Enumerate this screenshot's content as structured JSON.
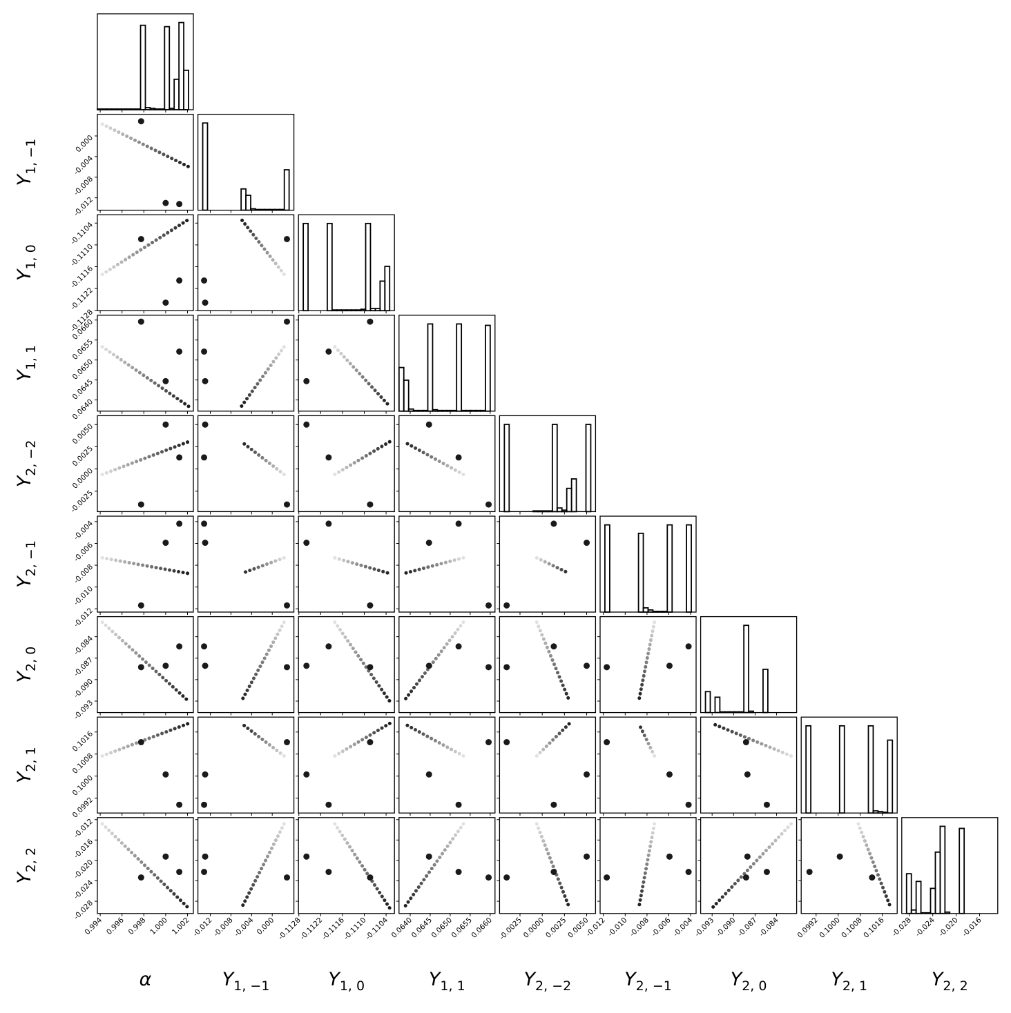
{
  "chart_data": {
    "type": "corner",
    "colors": {
      "frame": "#000000",
      "hist": "#000000",
      "mode": "#1a1a1a",
      "track": [
        "#e2e2e2",
        "#1a1a1a"
      ]
    },
    "parameters": [
      {
        "symbol": "α",
        "lim": [
          0.99374,
          1.00254
        ],
        "ticks": [
          0.994,
          0.996,
          0.998,
          {
            "value": 1,
            "label": "1.000"
          },
          1.002
        ],
        "bins": [
          0.99374,
          0.99418,
          0.99462,
          0.99506,
          0.9955,
          0.99594,
          0.99638,
          0.99682,
          0.99726,
          0.9977,
          0.99814,
          0.99858,
          0.99902,
          0.99946,
          0.9999,
          1.00034,
          1.00078,
          1.00122,
          1.00166,
          1.0021,
          1.00254
        ],
        "counts": [
          1,
          1,
          1,
          1,
          1,
          1,
          1,
          1,
          1,
          122,
          3,
          2,
          1,
          1,
          120,
          2,
          44,
          126,
          57,
          0
        ]
      },
      {
        "symbol": "Y",
        "sub": "1, −1",
        "lim": [
          -0.0144,
          0.0042
        ],
        "ticks": [
          -0.012,
          -0.008,
          -0.004,
          {
            "value": 0,
            "label": "0.000"
          }
        ],
        "bins": [
          -0.0144,
          -0.01347,
          -0.01254,
          -0.01161,
          -0.01068,
          -0.00975,
          -0.00882,
          -0.00789,
          -0.00696,
          -0.00603,
          -0.0051,
          -0.00417,
          -0.00324,
          -0.00231,
          -0.00138,
          -0.00045,
          0.00048,
          0.00141,
          0.00234,
          0.00327,
          0.0042
        ],
        "counts": [
          0,
          123,
          0,
          0,
          0,
          0,
          0,
          0,
          0,
          30,
          21,
          2,
          1,
          1,
          1,
          1,
          1,
          1,
          57,
          0
        ]
      },
      {
        "symbol": "Y",
        "sub": "1, 0",
        "lim": [
          -0.11281,
          -0.11017
        ],
        "ticks": [
          -0.1128,
          -0.1122,
          -0.1116,
          {
            "value": -0.111,
            "label": "-0.1110"
          },
          -0.1104
        ],
        "bins": [
          -0.11281,
          -0.112678,
          -0.112546,
          -0.112414,
          -0.112282,
          -0.11215,
          -0.112018,
          -0.111886,
          -0.111754,
          -0.111622,
          -0.11149,
          -0.111358,
          -0.111226,
          -0.111094,
          -0.110962,
          -0.11083,
          -0.110698,
          -0.110566,
          -0.110434,
          -0.110302,
          -0.11017
        ],
        "counts": [
          0,
          124,
          0,
          0,
          0,
          0,
          124,
          1,
          1,
          1,
          1,
          1,
          1,
          2,
          124,
          3,
          3,
          42,
          63,
          0
        ]
      },
      {
        "symbol": "Y",
        "sub": "1, 1",
        "lim": [
          0.06372,
          0.06612
        ],
        "ticks": [
          {
            "value": 0.064,
            "label": "0.0640"
          },
          0.0645,
          {
            "value": 0.065,
            "label": "0.0650"
          },
          0.0655,
          {
            "value": 0.066,
            "label": "0.0660"
          }
        ],
        "bins": [
          0.06372,
          0.06384,
          0.06396,
          0.06408,
          0.0642,
          0.06432,
          0.06444,
          0.06456,
          0.06468,
          0.0648,
          0.06492,
          0.06504,
          0.06516,
          0.06528,
          0.0654,
          0.06552,
          0.06564,
          0.06576,
          0.06588,
          0.066,
          0.06612
        ],
        "counts": [
          62,
          44,
          3,
          1,
          1,
          1,
          124,
          2,
          1,
          1,
          1,
          1,
          124,
          1,
          1,
          1,
          1,
          1,
          122,
          0
        ]
      },
      {
        "symbol": "Y",
        "sub": "2, −2",
        "lim": [
          -0.0048,
          0.006
        ],
        "ticks": [
          -0.0025,
          {
            "value": 0,
            "label": "0.0000"
          },
          0.0025,
          {
            "value": 0.005,
            "label": "0.0050"
          }
        ],
        "bins": [
          -0.0048,
          -0.00426,
          -0.00372,
          -0.00318,
          -0.00264,
          -0.0021,
          -0.00156,
          -0.00102,
          -0.00048,
          6e-05,
          0.0006,
          0.00114,
          0.00168,
          0.00222,
          0.00276,
          0.0033,
          0.00384,
          0.00438,
          0.00492,
          0.00546,
          0.006
        ],
        "counts": [
          0,
          120,
          0,
          0,
          0,
          0,
          0,
          1,
          1,
          1,
          1,
          120,
          5,
          2,
          32,
          45,
          0,
          0,
          120,
          0
        ]
      },
      {
        "symbol": "Y",
        "sub": "2, −1",
        "lim": [
          -0.0123,
          -0.0035
        ],
        "ticks": [
          -0.012,
          {
            "value": -0.01,
            "label": "-0.010"
          },
          -0.008,
          -0.006,
          -0.004
        ],
        "bins": [
          -0.0123,
          -0.01186,
          -0.01142,
          -0.01098,
          -0.01054,
          -0.0101,
          -0.00966,
          -0.00922,
          -0.00878,
          -0.00834,
          -0.0079,
          -0.00746,
          -0.00702,
          -0.00658,
          -0.00614,
          -0.0057,
          -0.00526,
          -0.00482,
          -0.00438,
          -0.00394,
          -0.0035
        ],
        "counts": [
          0,
          124,
          0,
          0,
          0,
          0,
          0,
          0,
          112,
          6,
          3,
          1,
          1,
          1,
          124,
          0,
          0,
          0,
          124,
          0
        ]
      },
      {
        "symbol": "Y",
        "sub": "2, 0",
        "lim": [
          -0.0946,
          -0.0812
        ],
        "ticks": [
          -0.093,
          {
            "value": -0.09,
            "label": "-0.090"
          },
          -0.087,
          -0.084
        ],
        "bins": [
          -0.0946,
          -0.09393,
          -0.09326,
          -0.09259,
          -0.09192,
          -0.09125,
          -0.09058,
          -0.08991,
          -0.08924,
          -0.08857,
          -0.0879,
          -0.08723,
          -0.08656,
          -0.08589,
          -0.08522,
          -0.08455,
          -0.08388,
          -0.08321,
          -0.08254,
          -0.08187,
          -0.0812
        ],
        "counts": [
          0,
          30,
          0,
          22,
          1,
          1,
          1,
          1,
          1,
          125,
          2,
          0,
          0,
          62,
          0,
          0,
          0,
          0,
          0,
          0
        ]
      },
      {
        "symbol": "Y",
        "sub": "2, 1",
        "lim": [
          0.09866,
          0.10214
        ],
        "ticks": [
          0.0992,
          {
            "value": 0.1,
            "label": "0.1000"
          },
          0.1008,
          0.1016
        ],
        "bins": [
          0.09866,
          0.098834,
          0.099008,
          0.099182,
          0.099356,
          0.09953,
          0.099704,
          0.099878,
          0.100052,
          0.100226,
          0.1004,
          0.100574,
          0.100748,
          0.100922,
          0.101096,
          0.10127,
          0.101444,
          0.101618,
          0.101792,
          0.101966,
          0.10214
        ],
        "counts": [
          0,
          122,
          0,
          0,
          0,
          0,
          0,
          0,
          122,
          0,
          0,
          0,
          0,
          0,
          122,
          3,
          2,
          1,
          102,
          0
        ]
      },
      {
        "symbol": "Y",
        "sub": "2, 2",
        "lim": [
          -0.0304,
          -0.0116
        ],
        "ticks": [
          -0.028,
          -0.024,
          {
            "value": -0.02,
            "label": "-0.020"
          },
          -0.016,
          -0.012
        ],
        "bins": [
          -0.0293,
          -0.02848,
          -0.02766,
          -0.02684,
          -0.02602,
          -0.0252,
          -0.02438,
          -0.02356,
          -0.02274,
          -0.02192,
          -0.0211,
          -0.02028,
          -0.01946,
          -0.01864,
          -0.01782,
          -0.017,
          -0.01618,
          -0.01536,
          -0.01454,
          -0.01372,
          -0.0129
        ],
        "counts": [
          0,
          57,
          5,
          46,
          1,
          1,
          36,
          88,
          125,
          2,
          0,
          0,
          122,
          0,
          0,
          0,
          0,
          0,
          0,
          0
        ]
      }
    ],
    "modes": [
      [
        0.99775,
        0.00285,
        -0.11084,
        0.06596,
        -0.004,
        -0.01169,
        -0.08826,
        0.10123,
        -0.02334
      ],
      [
        1.0,
        -0.013,
        -0.11259,
        0.06447,
        0.005,
        -0.00594,
        -0.08807,
        0.10006,
        -0.01925
      ],
      [
        1.00125,
        -0.0132,
        -0.11198,
        0.06521,
        0.0013,
        -0.00419,
        -0.08536,
        0.09896,
        -0.02225
      ]
    ],
    "track": {
      "start": [
        0.99419,
        0.0023,
        -0.11181,
        0.06533,
        -0.00062,
        -0.00732,
        -0.08197,
        0.10073,
        -0.01283
      ],
      "end": [
        1.0021,
        -0.00597,
        -0.1103,
        0.06384,
        0.00307,
        -0.00876,
        -0.09301,
        0.10191,
        -0.02935
      ]
    }
  }
}
